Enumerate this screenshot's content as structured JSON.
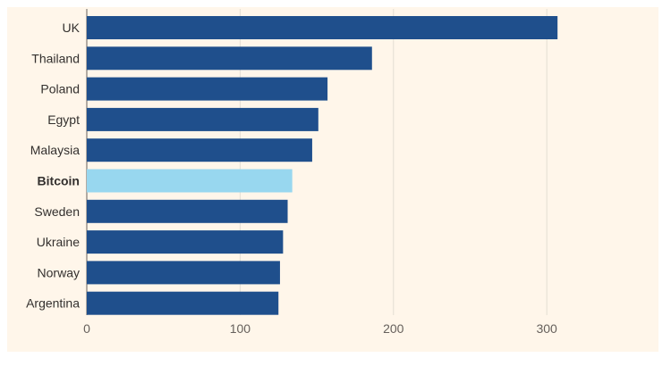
{
  "chart_data": {
    "type": "bar",
    "orientation": "horizontal",
    "categories": [
      "UK",
      "Thailand",
      "Poland",
      "Egypt",
      "Malaysia",
      "Bitcoin",
      "Sweden",
      "Ukraine",
      "Norway",
      "Argentina"
    ],
    "values": [
      307,
      186,
      157,
      151,
      147,
      134,
      131,
      128,
      126,
      125
    ],
    "highlight": "Bitcoin",
    "xlim": [
      0,
      360
    ],
    "xticks": [
      0,
      100,
      200,
      300
    ],
    "grid": true,
    "colors": {
      "bar": "#1f4f8c",
      "highlight": "#98d7ef",
      "background": "#fff6ea"
    }
  }
}
